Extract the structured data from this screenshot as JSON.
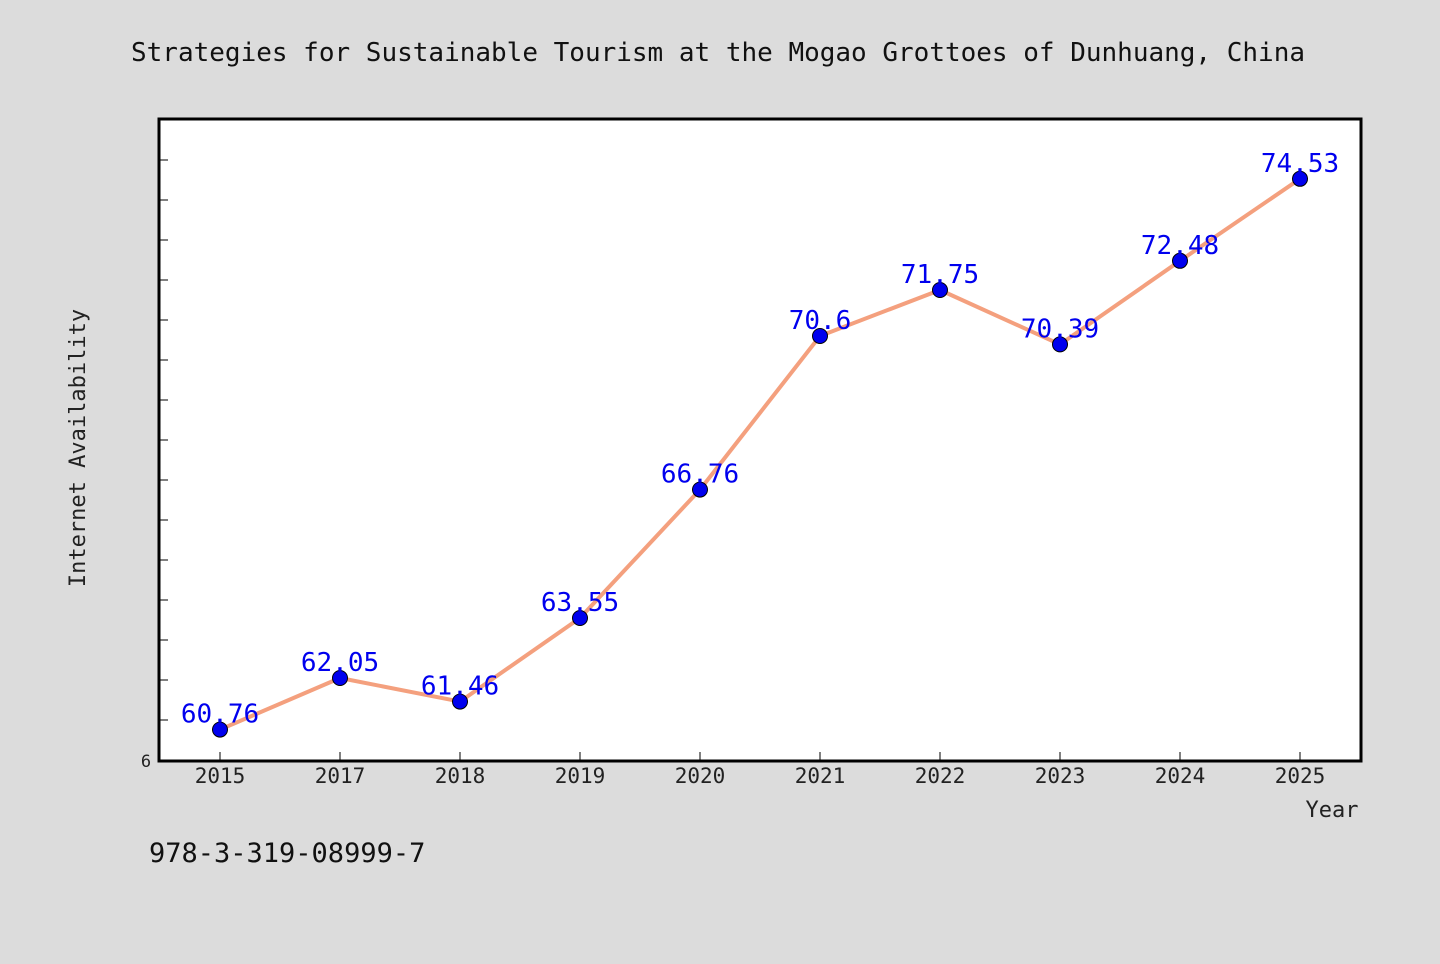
{
  "chart_data": {
    "type": "line",
    "title": "Strategies for Sustainable Tourism at the Mogao Grottoes of Dunhuang, China",
    "xlabel": "Year",
    "ylabel": "Internet Availability",
    "categories": [
      "2015",
      "2017",
      "2018",
      "2019",
      "2020",
      "2021",
      "2022",
      "2023",
      "2024",
      "2025"
    ],
    "series": [
      {
        "values": [
          60.76,
          62.05,
          61.46,
          63.55,
          66.76,
          70.6,
          71.75,
          70.39,
          72.48,
          74.53
        ],
        "labels": [
          "60.76",
          "62.05",
          "61.46",
          "63.55",
          "66.76",
          "70.6",
          "71.75",
          "70.39",
          "72.48",
          "74.53"
        ]
      }
    ],
    "y_tick_label": "6",
    "ylim": [
      60,
      76
    ],
    "line_color": "#f4a07e",
    "marker_color": "#0000ee",
    "label_color": "#0000ee",
    "grid": false,
    "legend": "none"
  },
  "footer_text": "978-3-319-08999-7"
}
